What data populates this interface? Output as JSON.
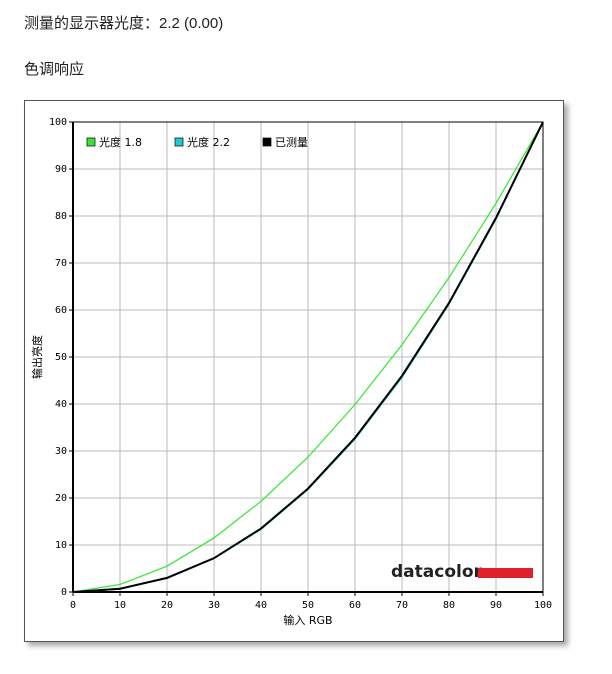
{
  "header": {
    "gamma": "测量的显示器光度：2.2 (0.00)",
    "section": "色调响应"
  },
  "chart_data": {
    "type": "line",
    "xlabel": "输入 RGB",
    "ylabel": "输出亮度",
    "logo": "datacolor",
    "x": [
      0,
      10,
      20,
      30,
      40,
      50,
      60,
      70,
      80,
      90,
      100
    ],
    "series": [
      {
        "name": "光度 1.8",
        "color": "#33e633",
        "values": [
          0,
          1.6,
          5.5,
          11.5,
          19.3,
          28.7,
          39.9,
          52.6,
          66.9,
          82.7,
          100
        ]
      },
      {
        "name": "光度 2.2",
        "color": "#22cccc",
        "values": [
          0,
          0.6,
          2.9,
          7.1,
          13.3,
          21.8,
          32.5,
          45.6,
          61.2,
          79.3,
          100
        ]
      },
      {
        "name": "已测量",
        "color": "#000000",
        "values": [
          0,
          0.7,
          3.0,
          7.2,
          13.5,
          22.0,
          32.8,
          46.0,
          61.5,
          79.6,
          100
        ]
      }
    ],
    "xlim": [
      0,
      100
    ],
    "ylim": [
      0,
      100
    ],
    "xticks": [
      0,
      10,
      20,
      30,
      40,
      50,
      60,
      70,
      80,
      90,
      100
    ],
    "yticks": [
      0,
      10,
      20,
      30,
      40,
      50,
      60,
      70,
      80,
      90,
      100
    ],
    "grid": true,
    "legend": "top-left"
  }
}
